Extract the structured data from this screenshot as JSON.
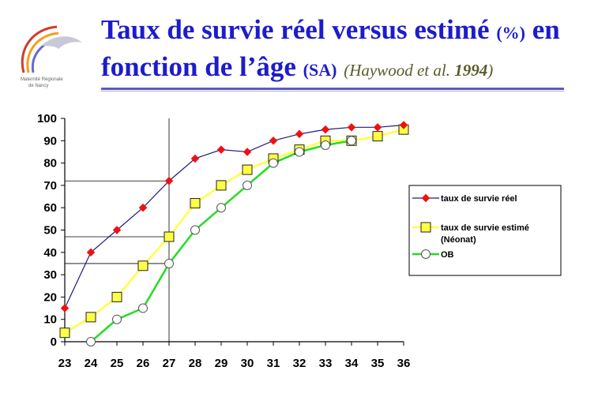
{
  "slide": {
    "title_part1": "Taux de survie réel versus estimé ",
    "title_unit": "(%)",
    "title_part2": " en",
    "title_line2": "fonction de l’âge ",
    "title_unit2": "(SA)",
    "citation_authors": "(Haywood et al. ",
    "citation_year": "1994",
    "citation_close": ")",
    "logo_text_line1": "Maternité Régionale",
    "logo_text_line2": "de Nancy"
  },
  "colors": {
    "title": "#1c1ccc",
    "series_reel_line": "#1c1c7a",
    "series_reel_marker": "#ee1111",
    "series_estime": "#ffff44",
    "series_ob": "#22dd22"
  },
  "chart_data": {
    "type": "line",
    "x": [
      23,
      24,
      25,
      26,
      27,
      28,
      29,
      30,
      31,
      32,
      33,
      34,
      35,
      36
    ],
    "xlim": [
      23,
      36
    ],
    "ylim": [
      0,
      100
    ],
    "yticks": [
      0,
      10,
      20,
      30,
      40,
      50,
      60,
      70,
      80,
      90,
      100
    ],
    "grid": false,
    "legend_position": "right",
    "series": [
      {
        "name": "taux de survie réel",
        "marker": "diamond",
        "values": [
          15,
          40,
          50,
          60,
          72,
          82,
          86,
          85,
          90,
          93,
          95,
          96,
          96,
          97
        ]
      },
      {
        "name": "taux de survie estimé (Néonat)",
        "marker": "square",
        "values": [
          4,
          11,
          20,
          34,
          47,
          62,
          70,
          77,
          82,
          86,
          90,
          90,
          92,
          95
        ]
      },
      {
        "name": "OB",
        "marker": "circle",
        "values": [
          null,
          0,
          10,
          15,
          35,
          50,
          60,
          70,
          80,
          85,
          88,
          90,
          null,
          null
        ]
      }
    ],
    "reference_lines": {
      "vertical_x": 27,
      "horizontal_y": [
        72,
        47,
        35
      ]
    },
    "legend_lines": [
      [
        "taux de survie réel"
      ],
      [
        "taux de survie estimé",
        "(Néonat)"
      ],
      [
        "OB"
      ]
    ]
  }
}
